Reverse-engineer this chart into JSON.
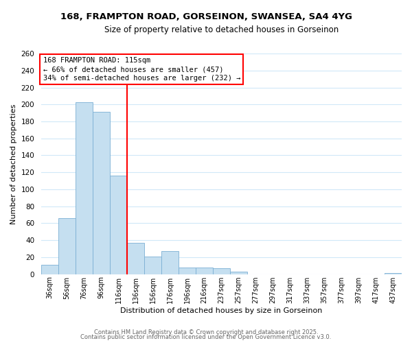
{
  "title": "168, FRAMPTON ROAD, GORSEINON, SWANSEA, SA4 4YG",
  "subtitle": "Size of property relative to detached houses in Gorseinon",
  "xlabel": "Distribution of detached houses by size in Gorseinon",
  "ylabel": "Number of detached properties",
  "bin_labels": [
    "36sqm",
    "56sqm",
    "76sqm",
    "96sqm",
    "116sqm",
    "136sqm",
    "156sqm",
    "176sqm",
    "196sqm",
    "216sqm",
    "237sqm",
    "257sqm",
    "277sqm",
    "297sqm",
    "317sqm",
    "337sqm",
    "357sqm",
    "377sqm",
    "397sqm",
    "417sqm",
    "437sqm"
  ],
  "bar_heights": [
    11,
    66,
    203,
    191,
    116,
    37,
    21,
    27,
    8,
    8,
    7,
    3,
    0,
    0,
    0,
    0,
    0,
    0,
    0,
    0,
    1
  ],
  "bar_color": "#c5dff0",
  "bar_edge_color": "#7bafd4",
  "vline_color": "red",
  "ylim": [
    0,
    260
  ],
  "yticks": [
    0,
    20,
    40,
    60,
    80,
    100,
    120,
    140,
    160,
    180,
    200,
    220,
    240,
    260
  ],
  "annotation_line1": "168 FRAMPTON ROAD: 115sqm",
  "annotation_line2": "← 66% of detached houses are smaller (457)",
  "annotation_line3": "34% of semi-detached houses are larger (232) →",
  "footer1": "Contains HM Land Registry data © Crown copyright and database right 2025.",
  "footer2": "Contains public sector information licensed under the Open Government Licence v3.0.",
  "background_color": "#ffffff",
  "grid_color": "#d0e8f8"
}
